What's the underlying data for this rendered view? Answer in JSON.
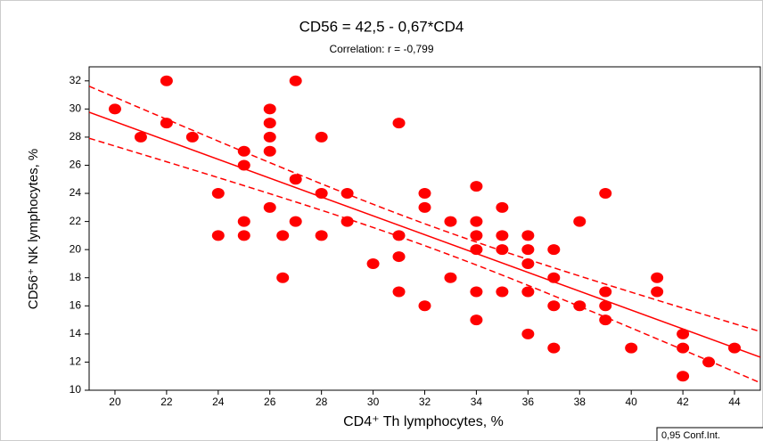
{
  "chart_data": {
    "type": "scatter",
    "title": "CD56 = 42,5 - 0,67*CD4",
    "subtitle": "Correlation: r = -0,799",
    "x_label": "CD4⁺ Th lymphocytes, %",
    "y_label": "CD56⁺ NK lymphocytes, %",
    "legend": "0,95 Conf.Int.",
    "color": "#ff0000",
    "regression": {
      "intercept": 42.5,
      "slope": -0.67
    },
    "x": [
      20,
      21,
      22,
      22,
      23,
      24,
      24,
      25,
      25,
      25,
      25,
      26,
      26,
      26,
      26,
      26,
      26.5,
      26.5,
      27,
      27,
      27,
      28,
      28,
      28,
      29,
      29,
      30,
      31,
      31,
      31,
      31,
      32,
      32,
      32,
      33,
      33,
      34,
      34,
      34,
      34,
      34,
      34,
      35,
      35,
      35,
      35,
      36,
      36,
      36,
      36,
      36,
      37,
      37,
      37,
      37,
      38,
      38,
      39,
      39,
      39,
      39,
      40,
      41,
      41,
      42,
      42,
      42,
      43,
      44
    ],
    "y": [
      30,
      28,
      32,
      29,
      28,
      24,
      21,
      27,
      26,
      22,
      21,
      30,
      29,
      28,
      27,
      23,
      21,
      18,
      32,
      25,
      22,
      28,
      24,
      21,
      24,
      22,
      19,
      29,
      21,
      19.5,
      17,
      24,
      23,
      16,
      22,
      18,
      24.5,
      22,
      21,
      20,
      17,
      15,
      23,
      21,
      20,
      17,
      21,
      20,
      19,
      17,
      14,
      20,
      18,
      16,
      13,
      22,
      16,
      24,
      17,
      16,
      15,
      13,
      18,
      17,
      14,
      13,
      11,
      12,
      13
    ],
    "xlim": [
      19,
      45
    ],
    "ylim": [
      10,
      33
    ],
    "xticks": [
      20,
      22,
      24,
      26,
      28,
      30,
      32,
      34,
      36,
      38,
      40,
      42,
      44
    ],
    "yticks": [
      10,
      12,
      14,
      16,
      18,
      20,
      22,
      24,
      26,
      28,
      30,
      32
    ]
  }
}
